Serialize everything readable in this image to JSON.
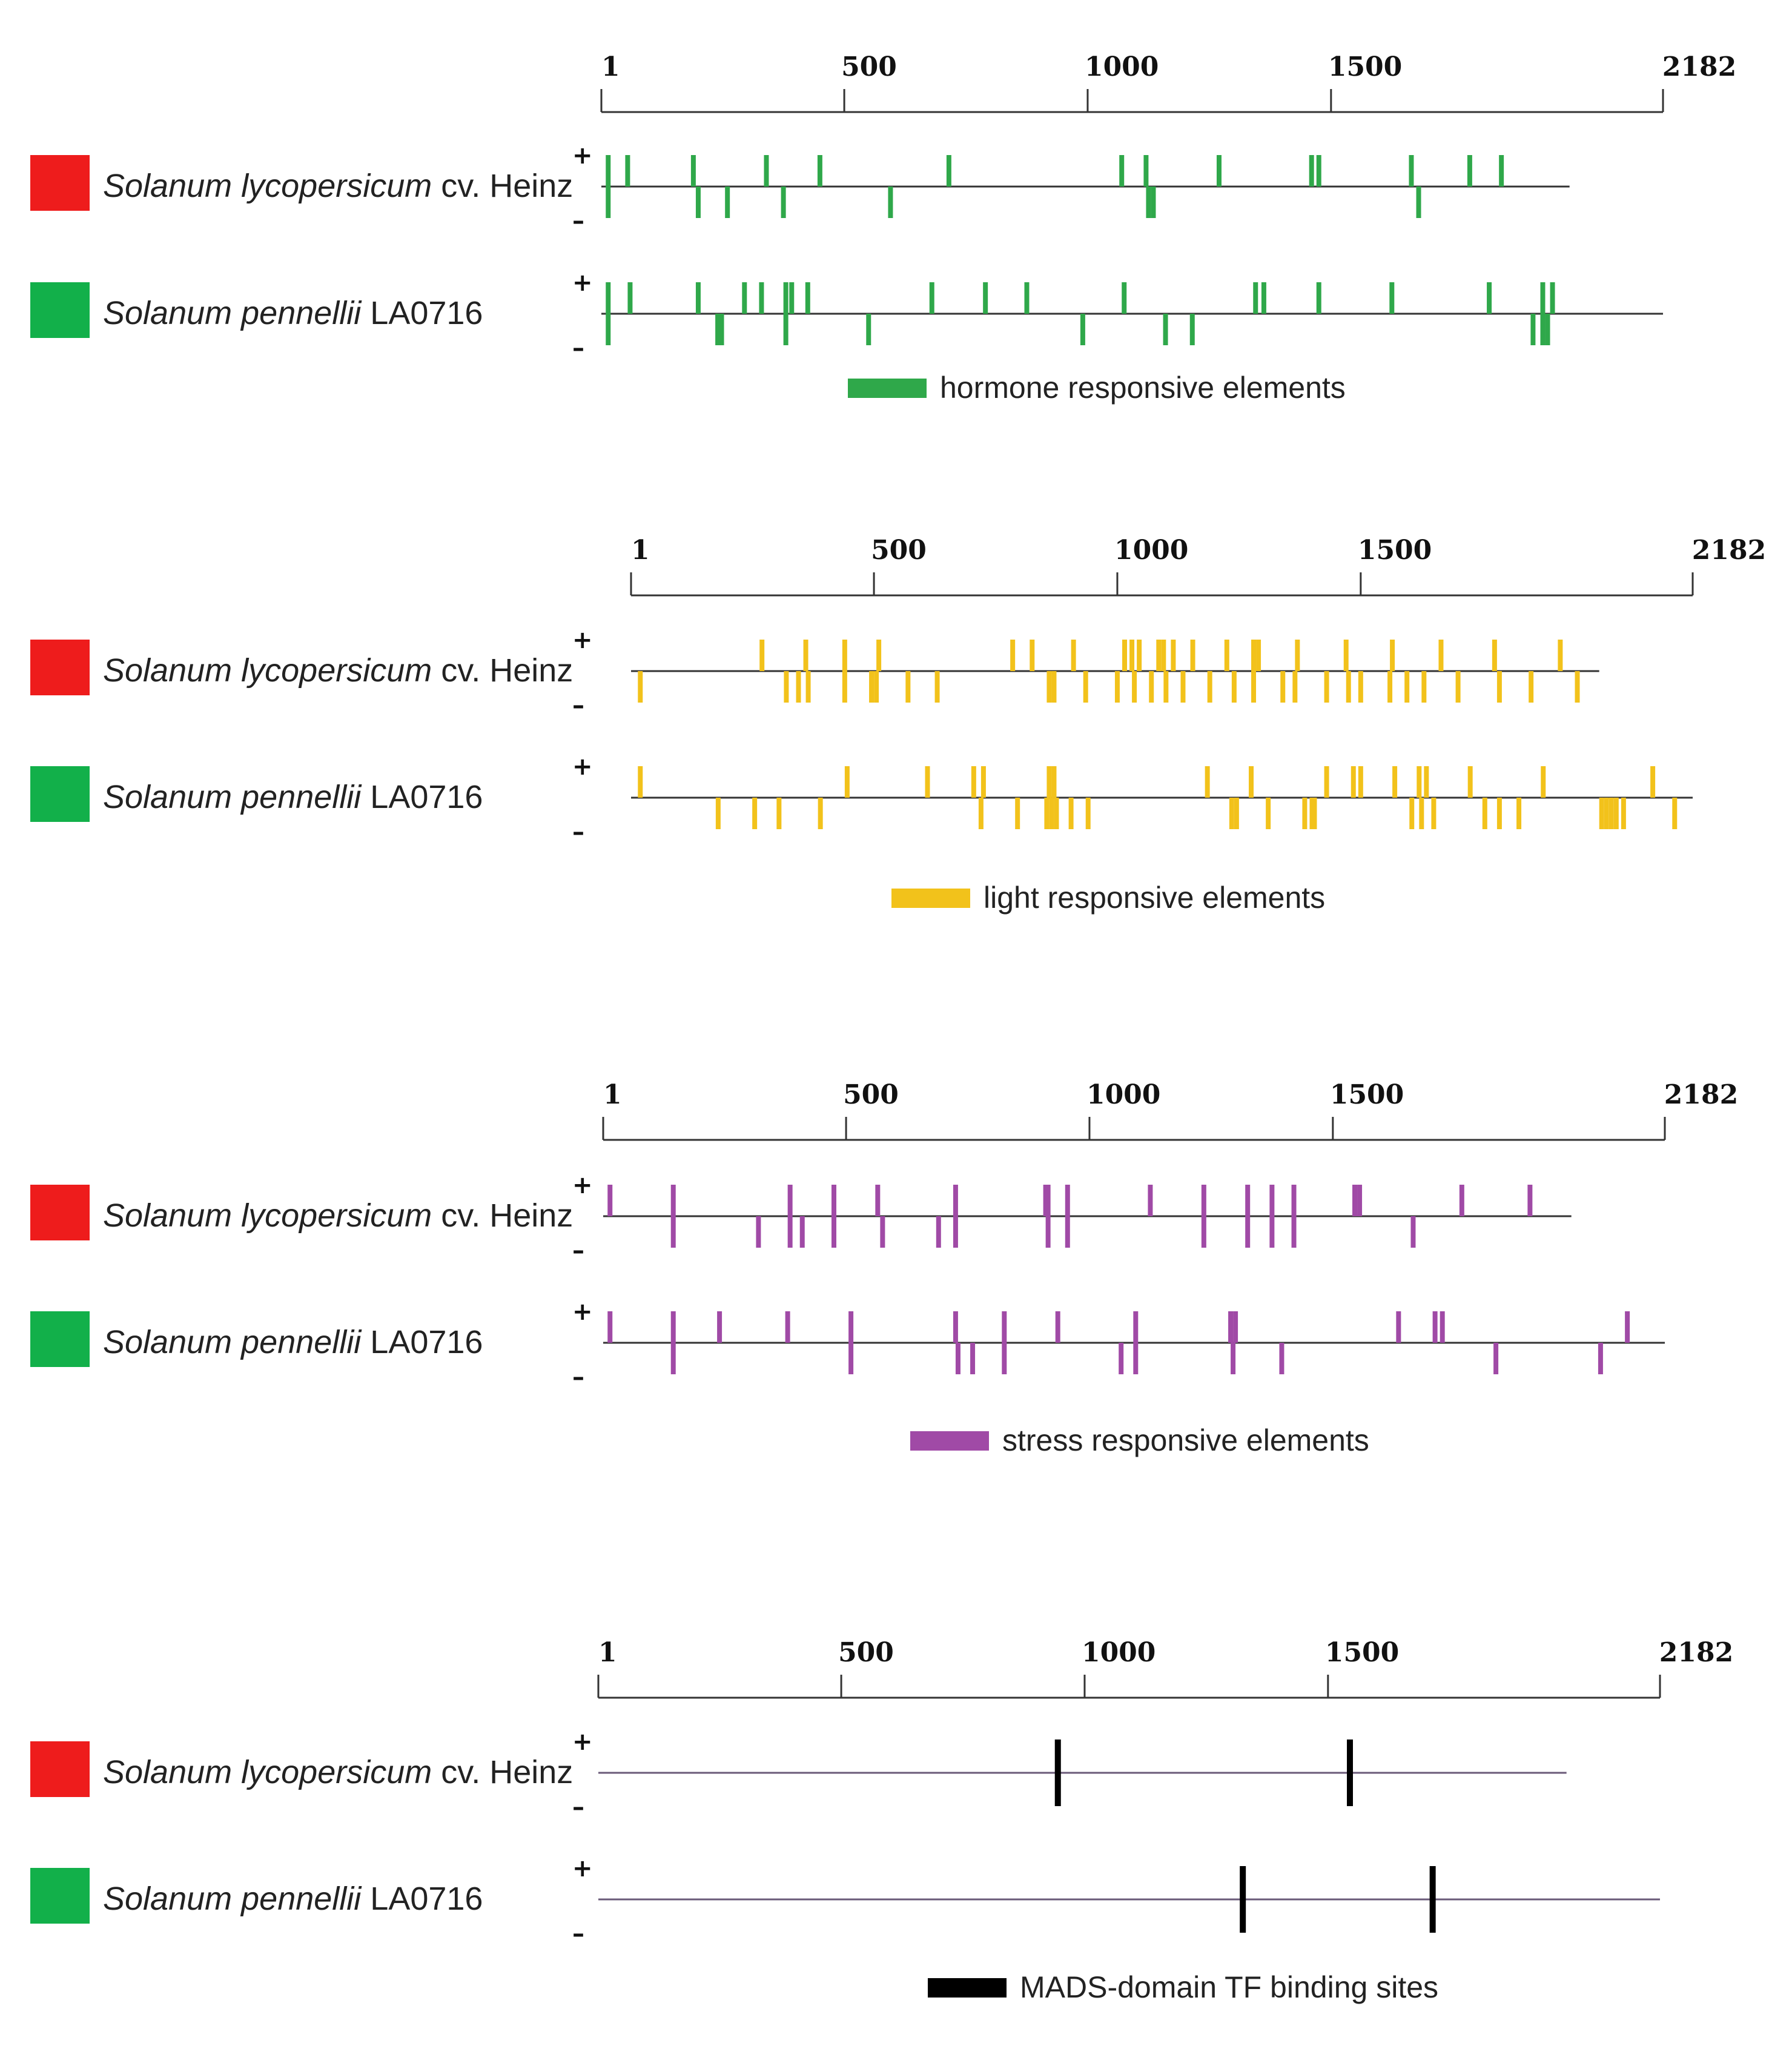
{
  "scale": {
    "start": 1,
    "end": 2182,
    "ticks": [
      "1",
      "500",
      "1000",
      "1500",
      "2182"
    ],
    "tick_values": [
      1,
      500,
      1000,
      1500,
      2182
    ]
  },
  "strand_labels": {
    "plus": "+",
    "minus": "–"
  },
  "species": [
    {
      "italic": "Solanum lycopersicum",
      "suffix": " cv. Heinz",
      "color": "#ee1c1c",
      "seq_len": 1990
    },
    {
      "italic": "Solanum pennellii",
      "suffix": " LA0716",
      "color": "#12b04a",
      "seq_len": 2182
    }
  ],
  "panels": [
    {
      "legend": "hormone responsive elements",
      "color": "#2fa84a",
      "tracks": [
        {
          "plus": [
            15,
            55,
            190,
            340,
            450,
            715,
            1070,
            1120,
            1270,
            1460,
            1475,
            1665,
            1785,
            1850
          ],
          "minus": [
            15,
            200,
            260,
            375,
            595,
            1125,
            1135,
            1680
          ]
        },
        {
          "plus": [
            15,
            60,
            200,
            295,
            330,
            380,
            392,
            425,
            680,
            790,
            875,
            1075,
            1345,
            1362,
            1475,
            1625,
            1825,
            1935,
            1955
          ],
          "minus": [
            15,
            240,
            248,
            380,
            550,
            990,
            1160,
            1215,
            1915,
            1935,
            1945
          ]
        }
      ]
    },
    {
      "legend": "light responsive elements",
      "color": "#f2c21b",
      "tracks": [
        {
          "plus": [
            270,
            360,
            440,
            510,
            785,
            825,
            910,
            1015,
            1030,
            1045,
            1085,
            1095,
            1115,
            1155,
            1225,
            1280,
            1290,
            1370,
            1470,
            1565,
            1665,
            1775,
            1910
          ],
          "minus": [
            20,
            320,
            345,
            365,
            440,
            495,
            505,
            570,
            630,
            860,
            870,
            935,
            1000,
            1035,
            1070,
            1100,
            1135,
            1190,
            1240,
            1280,
            1340,
            1365,
            1430,
            1475,
            1500,
            1560,
            1595,
            1630,
            1700,
            1785,
            1850,
            1945
          ]
        },
        {
          "plus": [
            20,
            445,
            610,
            705,
            725,
            860,
            870,
            1185,
            1275,
            1430,
            1485,
            1500,
            1570,
            1620,
            1635,
            1725,
            1875,
            2100
          ],
          "minus": [
            180,
            255,
            305,
            390,
            720,
            795,
            855,
            865,
            875,
            905,
            940,
            1235,
            1245,
            1310,
            1385,
            1400,
            1405,
            1605,
            1625,
            1650,
            1755,
            1785,
            1825,
            1995,
            2005,
            2015,
            2025,
            2040,
            2145
          ]
        }
      ]
    },
    {
      "legend": "stress responsive elements",
      "color": "#a04aa6",
      "tracks": [
        {
          "plus": [
            15,
            145,
            385,
            475,
            565,
            725,
            910,
            915,
            955,
            1125,
            1235,
            1325,
            1375,
            1420,
            1545,
            1555,
            1765,
            1905
          ],
          "minus": [
            145,
            320,
            385,
            410,
            475,
            575,
            690,
            725,
            915,
            955,
            1235,
            1325,
            1375,
            1420,
            1665
          ]
        },
        {
          "plus": [
            15,
            145,
            240,
            380,
            510,
            725,
            825,
            935,
            1095,
            1290,
            1300,
            1635,
            1710,
            1725,
            2105
          ],
          "minus": [
            145,
            510,
            730,
            760,
            825,
            1065,
            1095,
            1295,
            1395,
            1835,
            2050
          ]
        }
      ]
    },
    {
      "legend": "MADS-domain TF binding sites",
      "color": "#000000",
      "tracks": [
        {
          "both": [
            945,
            1545
          ]
        },
        {
          "both": [
            1325,
            1715
          ]
        }
      ]
    }
  ]
}
